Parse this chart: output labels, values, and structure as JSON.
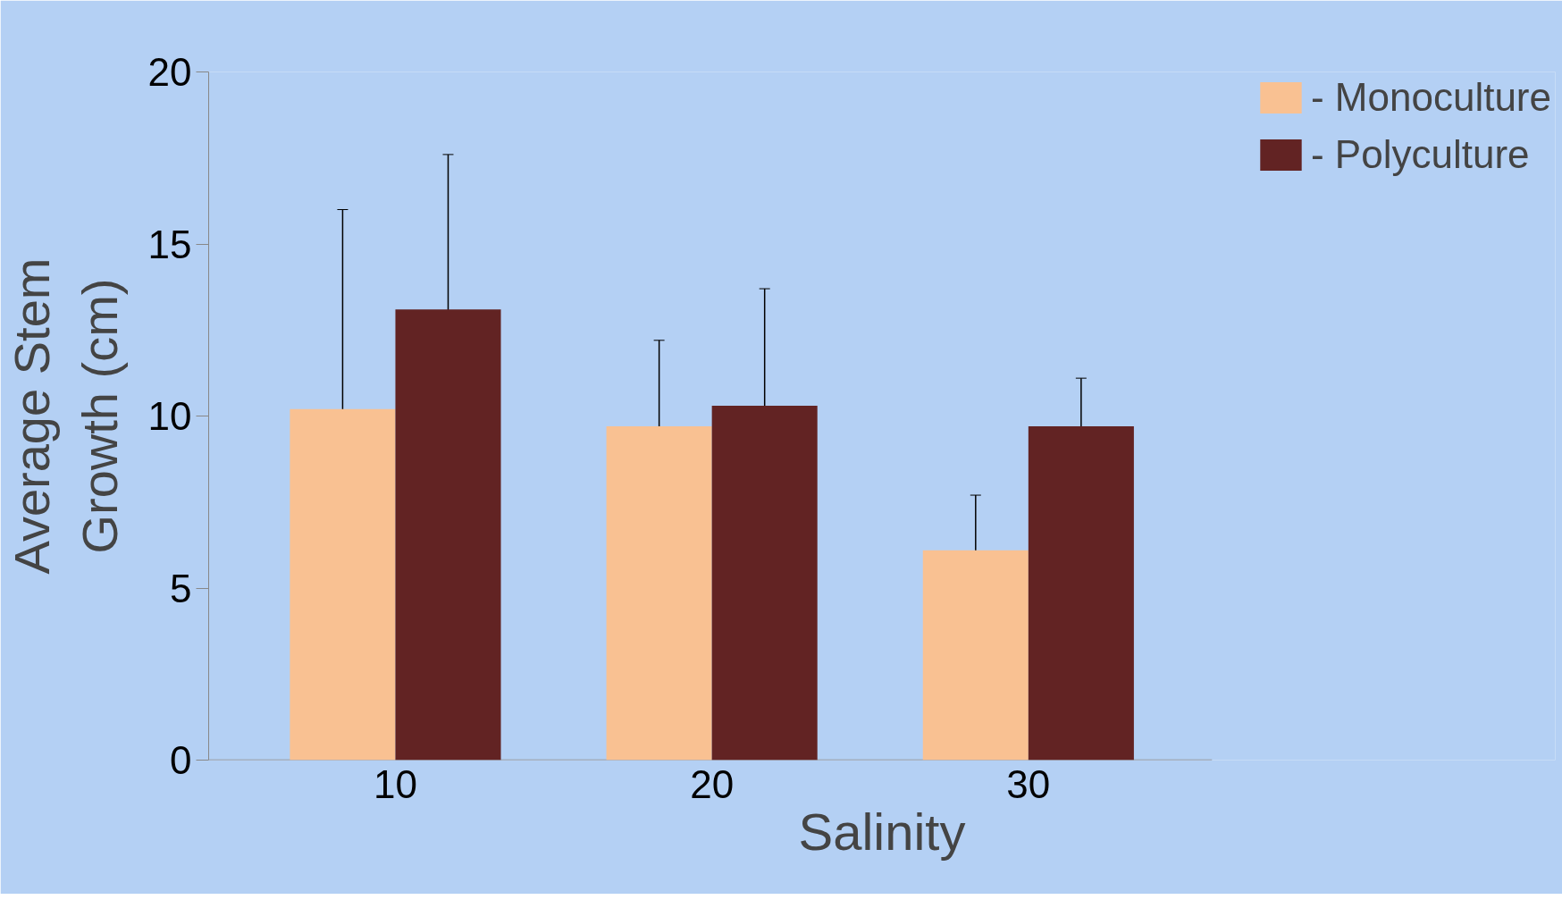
{
  "chart_data": {
    "type": "bar",
    "xlabel": "Salinity",
    "ylabel": "Average Stem\nGrowth (cm)",
    "categories": [
      "10",
      "20",
      "30"
    ],
    "series": [
      {
        "name": "- Monoculture",
        "color": "#f9c192",
        "values": [
          10.2,
          9.7,
          6.1
        ],
        "errors": [
          5.8,
          2.5,
          1.6
        ]
      },
      {
        "name": "- Polyculture",
        "color": "#622323",
        "values": [
          13.1,
          10.3,
          9.7
        ],
        "errors": [
          4.5,
          3.4,
          1.4
        ]
      }
    ],
    "ylim": [
      0,
      20
    ],
    "yticks": [
      0,
      5,
      10,
      15,
      20
    ],
    "grid": false,
    "legend": "top right"
  }
}
